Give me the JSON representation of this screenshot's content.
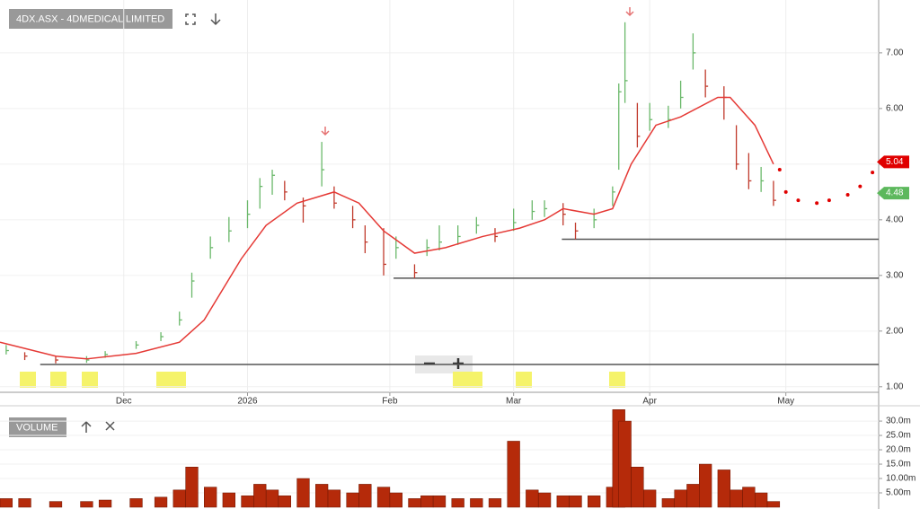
{
  "chart_data": [
    {
      "type": "ohlc",
      "title": "4DX.ASX - 4DMEDICAL LIMITED",
      "up_color": "#6ab86a",
      "down_color": "#c0392b",
      "grid": true,
      "x": [
        1,
        4,
        9,
        14,
        17,
        22,
        26,
        29,
        31,
        34,
        37,
        40,
        42,
        44,
        46,
        49,
        52,
        54,
        57,
        59,
        62,
        64,
        67,
        69,
        71,
        74,
        77,
        80,
        83,
        86,
        88,
        91,
        93,
        96,
        99,
        100,
        101,
        103,
        105,
        108,
        110,
        112,
        114,
        117,
        119,
        121,
        123,
        125
      ],
      "high": [
        1.75,
        1.62,
        1.55,
        1.55,
        1.64,
        1.82,
        1.98,
        2.35,
        3.05,
        3.7,
        4.05,
        4.35,
        4.75,
        4.9,
        4.7,
        4.4,
        5.4,
        4.6,
        4.25,
        3.9,
        3.85,
        3.7,
        3.2,
        3.65,
        3.9,
        3.9,
        4.05,
        3.85,
        4.2,
        4.35,
        4.35,
        4.3,
        3.95,
        4.2,
        4.6,
        6.45,
        7.55,
        6.1,
        6.1,
        6.05,
        6.5,
        7.35,
        6.7,
        6.4,
        5.7,
        5.2,
        4.95,
        4.7
      ],
      "low": [
        1.58,
        1.48,
        1.42,
        1.43,
        1.52,
        1.68,
        1.82,
        2.1,
        2.6,
        3.3,
        3.6,
        3.85,
        4.2,
        4.45,
        4.35,
        3.95,
        4.6,
        4.2,
        3.85,
        3.4,
        3.0,
        3.3,
        2.95,
        3.35,
        3.45,
        3.55,
        3.75,
        3.6,
        3.8,
        4.0,
        4.05,
        3.9,
        3.65,
        3.85,
        4.25,
        4.9,
        6.1,
        5.3,
        5.6,
        5.65,
        6.0,
        6.7,
        6.2,
        5.8,
        4.9,
        4.55,
        4.5,
        4.25
      ],
      "close": [
        1.65,
        1.55,
        1.48,
        1.48,
        1.58,
        1.75,
        1.9,
        2.2,
        2.9,
        3.5,
        3.8,
        4.1,
        4.6,
        4.8,
        4.5,
        4.25,
        4.9,
        4.3,
        4.0,
        3.6,
        3.2,
        3.5,
        3.05,
        3.5,
        3.6,
        3.7,
        3.9,
        3.7,
        3.95,
        4.15,
        4.2,
        4.1,
        3.8,
        4.0,
        4.5,
        6.3,
        6.5,
        5.5,
        5.8,
        5.8,
        6.2,
        7.0,
        6.4,
        6.2,
        5.0,
        4.7,
        4.7,
        4.35
      ],
      "ma": {
        "color": "#e53935",
        "x": [
          0,
          9,
          14,
          22,
          29,
          33,
          39,
          43,
          48,
          54,
          58,
          62,
          67,
          72,
          78,
          84,
          88,
          91,
          96,
          99,
          102,
          106,
          110,
          116,
          118,
          122,
          125
        ],
        "values": [
          1.8,
          1.55,
          1.5,
          1.6,
          1.8,
          2.2,
          3.3,
          3.9,
          4.3,
          4.5,
          4.3,
          3.8,
          3.4,
          3.5,
          3.7,
          3.85,
          4.0,
          4.2,
          4.1,
          4.2,
          5.0,
          5.7,
          5.85,
          6.2,
          6.2,
          5.7,
          5.0
        ]
      },
      "projection": {
        "color": "#e00000",
        "x": [
          126,
          127,
          129,
          132,
          134,
          137,
          139,
          141
        ],
        "values": [
          4.9,
          4.5,
          4.35,
          4.3,
          4.35,
          4.45,
          4.6,
          4.85
        ]
      },
      "levels": [
        {
          "value": 1.4,
          "start": 6.5
        },
        {
          "value": 2.95,
          "start": 63.6
        },
        {
          "value": 3.65,
          "start": 90.8
        }
      ],
      "price_tags": [
        {
          "value": 5.04,
          "color": "#e00000"
        },
        {
          "value": 4.48,
          "color": "#5cb85c"
        }
      ],
      "xlim": [
        0,
        142
      ],
      "xticks": [
        {
          "value": 20,
          "label": "Dec"
        },
        {
          "value": 40,
          "label": "2026"
        },
        {
          "value": 63,
          "label": "Feb"
        },
        {
          "value": 83,
          "label": "Mar"
        },
        {
          "value": 105,
          "label": "Apr"
        },
        {
          "value": 127,
          "label": "May"
        }
      ],
      "ylim": [
        0.9,
        7.95
      ],
      "yticks": [
        {
          "value": 1,
          "label": "1.00"
        },
        {
          "value": 2,
          "label": "2.00"
        },
        {
          "value": 3,
          "label": "3.00"
        },
        {
          "value": 4,
          "label": "4.00"
        },
        {
          "value": 5,
          "label": "5.00"
        },
        {
          "value": 6,
          "label": "6.00"
        },
        {
          "value": 7,
          "label": "7.00"
        }
      ]
    },
    {
      "type": "bar",
      "title": "VOLUME",
      "color": "#b52a0a",
      "x": [
        1,
        4,
        9,
        14,
        17,
        22,
        26,
        29,
        31,
        34,
        37,
        40,
        42,
        44,
        46,
        49,
        52,
        54,
        57,
        59,
        62,
        64,
        67,
        69,
        71,
        74,
        77,
        80,
        83,
        86,
        88,
        91,
        93,
        96,
        99,
        100,
        101,
        103,
        105,
        108,
        110,
        112,
        114,
        117,
        119,
        121,
        123,
        125
      ],
      "values": [
        3,
        3,
        2,
        2,
        2.5,
        3,
        3.5,
        6,
        14,
        7,
        5,
        4,
        8,
        6,
        4,
        10,
        8,
        6,
        5,
        8,
        7,
        5,
        3,
        4,
        4,
        3,
        3,
        3,
        23,
        6,
        5,
        4,
        4,
        4,
        7,
        34,
        30,
        14,
        6,
        3,
        6,
        8,
        15,
        13,
        6,
        7,
        5,
        2
      ],
      "xlim": [
        0,
        142
      ],
      "ylim": [
        0,
        34.4
      ],
      "yticks": [
        {
          "value": 5,
          "label": "5.00m"
        },
        {
          "value": 10,
          "label": "10.00m"
        },
        {
          "value": 15,
          "label": "15.0m"
        },
        {
          "value": 20,
          "label": "20.0m"
        },
        {
          "value": 25,
          "label": "25.0m"
        },
        {
          "value": 30,
          "label": "30.0m"
        }
      ]
    }
  ]
}
